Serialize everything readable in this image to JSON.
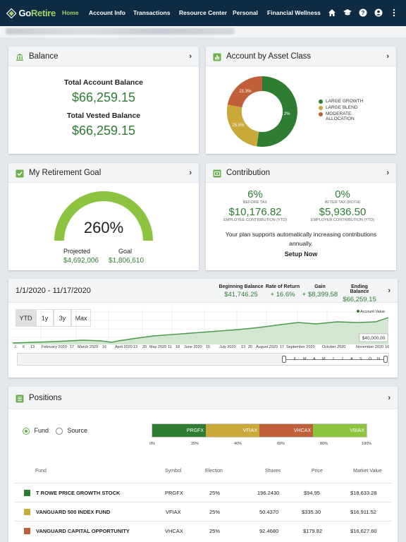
{
  "colors": {
    "nav_bg": "#0f2a43",
    "accent_green": "#9ed36a",
    "value_green": "#2e7d32",
    "large_growth": "#2e7d32",
    "large_blend": "#c9a93a",
    "moderate_allocation": "#c0603a",
    "prgfx": "#2e7d32",
    "vfiax": "#c9a93a",
    "vhcax": "#c0603a",
    "vbiax": "#8cc43f"
  },
  "nav": {
    "logo_go": "Go",
    "logo_retire": "Retire",
    "items": [
      "Home",
      "Account Info",
      "Transactions",
      "Resource Center",
      "Personal",
      "Financial Wellness"
    ],
    "icons": [
      "home-icon",
      "graduation-cap-icon",
      "help-icon",
      "account-icon",
      "more-vert-icon"
    ]
  },
  "balance": {
    "title": "Balance",
    "total_label": "Total Account Balance",
    "total_value": "$66,259.15",
    "vested_label": "Total Vested Balance",
    "vested_value": "$66,259.15"
  },
  "asset_class": {
    "title": "Account by Asset Class",
    "legend": [
      "LARGE GROWTH",
      "LARGE BLEND",
      "MODERATE ALLOCATION"
    ],
    "slice_labels": [
      "53.2%",
      "25.5%",
      "21.3%"
    ]
  },
  "retirement_goal": {
    "title": "My Retirement Goal",
    "percent": "260%",
    "gauge_fill": 1.0,
    "projected_label": "Projected",
    "projected_value": "$4,692,006",
    "goal_label": "Goal",
    "goal_value": "$1,806,610"
  },
  "contribution": {
    "title": "Contribution",
    "before_tax_pct": "6%",
    "before_tax_label": "BEFORE TAX",
    "after_tax_pct": "0%",
    "after_tax_label": "AFTER TAX (ROTH)",
    "employee_amount": "$10,176.82",
    "employee_label": "EMPLOYEE CONTRIBUTION (YTD)",
    "employer_amount": "$5,936.50",
    "employer_label": "EMPLOYER CONTRIBUTION (YTD)",
    "note": "Your plan supports automatically increasing contributions annually.",
    "setup_link": "Setup Now"
  },
  "performance": {
    "date_range": "1/1/2020 - 11/17/2020",
    "stats": [
      {
        "label": "Beginning Balance",
        "value": "$41,746.25"
      },
      {
        "label": "Rate of Return",
        "value": "+ 16.6%"
      },
      {
        "label": "Gain",
        "value": "+ $8,399.58"
      },
      {
        "label": "Ending Balance",
        "value": "$66,259.15"
      }
    ],
    "ranges": [
      "YTD",
      "1y",
      "3y",
      "Max"
    ],
    "series_label": "Account Value",
    "value_tag": "$40,000.00",
    "x_labels": [
      "J..",
      "6",
      "13",
      "February 2020",
      "17",
      "March 2020",
      "16",
      "April 2020",
      "13",
      "20",
      "May 2020",
      "11",
      "18",
      "June 2020",
      "15",
      "July 2020",
      "13",
      "20",
      "August 2020",
      "17",
      "September 2020",
      "October 2020",
      "November 2020",
      "16"
    ],
    "nav_labels": [
      "F",
      "M",
      "A",
      "M",
      "J",
      "J",
      "A",
      "S",
      "O",
      "N"
    ]
  },
  "positions": {
    "title": "Positions",
    "view_options": [
      "Fund",
      "Source"
    ],
    "selected_view": "Fund",
    "bar_segments": [
      {
        "symbol": "PRGFX",
        "share": 25
      },
      {
        "symbol": "VFIAX",
        "share": 25
      },
      {
        "symbol": "VHCAX",
        "share": 25
      },
      {
        "symbol": "VBIAX",
        "share": 25
      }
    ],
    "bar_axis": [
      "0%",
      "20%",
      "40%",
      "60%",
      "80%",
      "100%"
    ],
    "columns": [
      "Fund",
      "Symbol",
      "Election",
      "Shares",
      "Price",
      "Market Value"
    ],
    "rows": [
      {
        "fund": "T ROWE PRICE GROWTH STOCK",
        "symbol": "PRGFX",
        "election": "25%",
        "shares": "196.2430",
        "price": "$94.95",
        "market_value": "$18,633.28"
      },
      {
        "fund": "VANGUARD 500 INDEX FUND",
        "symbol": "VFIAX",
        "election": "25%",
        "shares": "50.4370",
        "price": "$335.30",
        "market_value": "$16,911.52"
      },
      {
        "fund": "VANGUARD CAPITAL OPPORTUNITY",
        "symbol": "VHCAX",
        "election": "25%",
        "shares": "92.4680",
        "price": "$179.82",
        "market_value": "$16,627.60"
      }
    ]
  }
}
